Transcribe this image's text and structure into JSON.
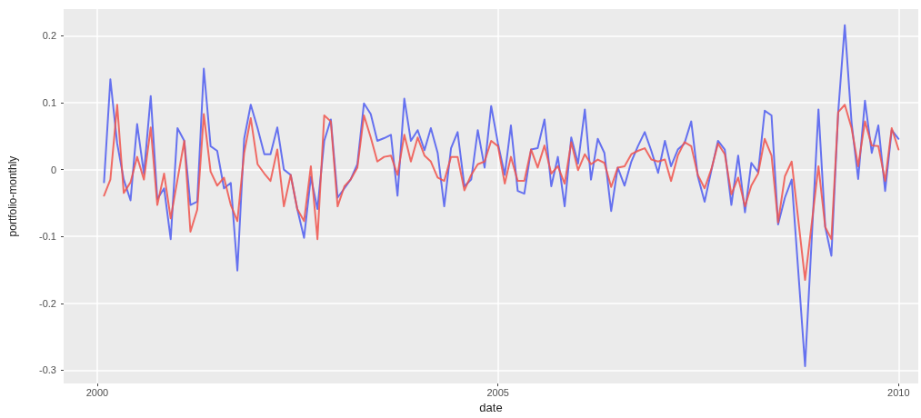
{
  "chart_data": {
    "type": "line",
    "xlabel": "date",
    "ylabel": "portfolio-monthly",
    "grid": true,
    "marker": "none",
    "xlim": [
      "1999-08",
      "2010-04"
    ],
    "xticks": [
      {
        "value": "2000",
        "label": "2000"
      },
      {
        "value": "2005",
        "label": "2005"
      },
      {
        "value": "2010",
        "label": "2010"
      }
    ],
    "ylim": [
      -0.32,
      0.24
    ],
    "yticks": [
      -0.3,
      -0.2,
      -0.1,
      0.0,
      0.1,
      0.2
    ],
    "x": [
      "2000-02",
      "2000-03",
      "2000-04",
      "2000-05",
      "2000-06",
      "2000-07",
      "2000-08",
      "2000-09",
      "2000-10",
      "2000-11",
      "2000-12",
      "2001-01",
      "2001-02",
      "2001-03",
      "2001-04",
      "2001-05",
      "2001-06",
      "2001-07",
      "2001-08",
      "2001-09",
      "2001-10",
      "2001-11",
      "2001-12",
      "2002-01",
      "2002-02",
      "2002-03",
      "2002-04",
      "2002-05",
      "2002-06",
      "2002-07",
      "2002-08",
      "2002-09",
      "2002-10",
      "2002-11",
      "2002-12",
      "2003-01",
      "2003-02",
      "2003-03",
      "2003-04",
      "2003-05",
      "2003-06",
      "2003-07",
      "2003-08",
      "2003-09",
      "2003-10",
      "2003-11",
      "2003-12",
      "2004-01",
      "2004-02",
      "2004-03",
      "2004-04",
      "2004-05",
      "2004-06",
      "2004-07",
      "2004-08",
      "2004-09",
      "2004-10",
      "2004-11",
      "2004-12",
      "2005-01",
      "2005-02",
      "2005-03",
      "2005-04",
      "2005-05",
      "2005-06",
      "2005-07",
      "2005-08",
      "2005-09",
      "2005-10",
      "2005-11",
      "2005-12",
      "2006-01",
      "2006-02",
      "2006-03",
      "2006-04",
      "2006-05",
      "2006-06",
      "2006-07",
      "2006-08",
      "2006-09",
      "2006-10",
      "2006-11",
      "2006-12",
      "2007-01",
      "2007-02",
      "2007-03",
      "2007-04",
      "2007-05",
      "2007-06",
      "2007-07",
      "2007-08",
      "2007-09",
      "2007-10",
      "2007-11",
      "2007-12",
      "2008-01",
      "2008-02",
      "2008-03",
      "2008-04",
      "2008-05",
      "2008-06",
      "2008-07",
      "2008-08",
      "2008-09",
      "2008-11",
      "2009-01",
      "2009-02",
      "2009-03",
      "2009-04",
      "2009-05",
      "2009-06",
      "2009-07",
      "2009-08",
      "2009-09",
      "2009-10",
      "2009-11",
      "2009-12",
      "2010-01"
    ],
    "series": [
      {
        "color": "#4d5cf0",
        "values": [
          -0.019,
          0.135,
          0.039,
          -0.015,
          -0.046,
          0.068,
          -0.006,
          0.11,
          -0.044,
          -0.028,
          -0.104,
          0.062,
          0.043,
          -0.053,
          -0.048,
          0.151,
          0.035,
          0.028,
          -0.028,
          -0.02,
          -0.151,
          0.046,
          0.097,
          0.062,
          0.023,
          0.023,
          0.063,
          0.0,
          -0.008,
          -0.059,
          -0.102,
          -0.011,
          -0.059,
          0.043,
          0.075,
          -0.042,
          -0.028,
          -0.015,
          0.008,
          0.099,
          0.083,
          0.043,
          0.047,
          0.052,
          -0.039,
          0.106,
          0.043,
          0.059,
          0.029,
          0.062,
          0.025,
          -0.055,
          0.032,
          0.056,
          -0.025,
          -0.015,
          0.059,
          0.003,
          0.095,
          0.039,
          -0.008,
          0.066,
          -0.032,
          -0.036,
          0.03,
          0.032,
          0.075,
          -0.025,
          0.019,
          -0.055,
          0.048,
          0.009,
          0.09,
          -0.015,
          0.046,
          0.025,
          -0.062,
          0.003,
          -0.024,
          0.012,
          0.035,
          0.056,
          0.028,
          -0.005,
          0.043,
          0.005,
          0.03,
          0.039,
          0.072,
          -0.01,
          -0.048,
          -0.001,
          0.043,
          0.03,
          -0.053,
          0.021,
          -0.064,
          0.01,
          -0.004,
          0.088,
          0.081,
          -0.082,
          -0.042,
          -0.015,
          -0.294,
          0.09,
          -0.086,
          -0.129,
          0.086,
          0.216,
          0.07,
          -0.014,
          0.103,
          0.025,
          0.066,
          -0.032,
          0.059,
          0.046
        ]
      },
      {
        "color": "#f0544c",
        "values": [
          -0.039,
          -0.015,
          0.097,
          -0.035,
          -0.019,
          0.019,
          -0.015,
          0.063,
          -0.053,
          -0.006,
          -0.073,
          -0.015,
          0.043,
          -0.093,
          -0.06,
          0.083,
          -0.003,
          -0.024,
          -0.012,
          -0.053,
          -0.077,
          0.025,
          0.077,
          0.008,
          -0.006,
          -0.017,
          0.03,
          -0.055,
          -0.008,
          -0.059,
          -0.077,
          0.005,
          -0.104,
          0.081,
          0.072,
          -0.055,
          -0.025,
          -0.015,
          0.003,
          0.081,
          0.048,
          0.012,
          0.019,
          0.021,
          -0.008,
          0.052,
          0.012,
          0.048,
          0.021,
          0.012,
          -0.012,
          -0.017,
          0.019,
          0.019,
          -0.031,
          -0.008,
          0.008,
          0.012,
          0.043,
          0.035,
          -0.021,
          0.019,
          -0.017,
          -0.017,
          0.03,
          0.003,
          0.036,
          -0.006,
          0.005,
          -0.021,
          0.041,
          -0.001,
          0.023,
          0.008,
          0.015,
          0.01,
          -0.026,
          0.003,
          0.005,
          0.023,
          0.028,
          0.032,
          0.015,
          0.012,
          0.015,
          -0.017,
          0.021,
          0.041,
          0.035,
          -0.008,
          -0.028,
          0.001,
          0.039,
          0.023,
          -0.037,
          -0.012,
          -0.055,
          -0.024,
          -0.006,
          0.046,
          0.021,
          -0.079,
          -0.01,
          0.012,
          -0.165,
          0.005,
          -0.086,
          -0.104,
          0.086,
          0.097,
          0.062,
          0.005,
          0.072,
          0.036,
          0.035,
          -0.017,
          0.062,
          0.03
        ]
      }
    ]
  }
}
